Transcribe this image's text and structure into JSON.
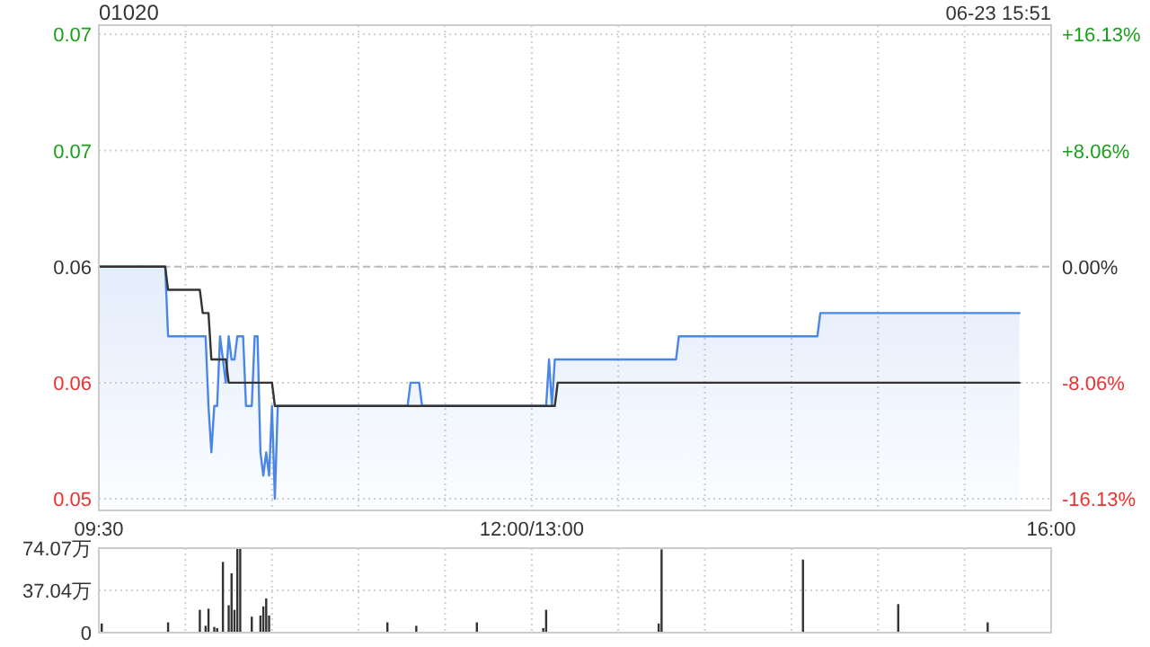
{
  "chart_data": [
    {
      "type": "line",
      "title": "01020",
      "annotations": [
        "06-23 15:51"
      ],
      "categories": [
        "09:30",
        null,
        null,
        null,
        null,
        null,
        null,
        null,
        null,
        null,
        null,
        null,
        null,
        null,
        null,
        null,
        null,
        null,
        null,
        null,
        null,
        null,
        null,
        null,
        null,
        null,
        null,
        null,
        null,
        null,
        null,
        null,
        null,
        null,
        null,
        null,
        null,
        null,
        null,
        null,
        null,
        null,
        null,
        null,
        null,
        null,
        null,
        null,
        null,
        null,
        null,
        null,
        null,
        null,
        null,
        null,
        null,
        null,
        null,
        null,
        null,
        null,
        null,
        null,
        null,
        null,
        null,
        null,
        null,
        null,
        null,
        null,
        null,
        null,
        null,
        null,
        null,
        null,
        null,
        null,
        null,
        null,
        null,
        null,
        null,
        null,
        null,
        null,
        null,
        null,
        null,
        null,
        null,
        null,
        null,
        null,
        null,
        null,
        null,
        null,
        null,
        null,
        null,
        null,
        null,
        null,
        null,
        null,
        null,
        null,
        null,
        null,
        null,
        null,
        null,
        null,
        null,
        null,
        null,
        null,
        null,
        null,
        null,
        null,
        null,
        null,
        null,
        null,
        null,
        null,
        null,
        null,
        null,
        null,
        null,
        null,
        null,
        null,
        null,
        null,
        null,
        null,
        null,
        null,
        null,
        null,
        null,
        null,
        null,
        null,
        "12:00/13:00",
        null,
        null,
        null,
        null,
        null,
        null,
        null,
        null,
        null,
        null,
        null,
        null,
        null,
        null,
        null,
        null,
        null,
        null,
        null,
        null,
        null,
        null,
        null,
        null,
        null,
        null,
        null,
        null,
        null,
        null,
        null,
        null,
        null,
        null,
        null,
        null,
        null,
        null,
        null,
        null,
        null,
        null,
        null,
        null,
        null,
        null,
        null,
        null,
        null,
        null,
        null,
        null,
        null,
        null,
        null,
        null,
        null,
        null,
        null,
        null,
        null,
        null,
        null,
        null,
        null,
        null,
        null,
        null,
        null,
        null,
        null,
        null,
        null,
        null,
        null,
        null,
        null,
        null,
        null,
        null,
        null,
        null,
        null,
        null,
        null,
        null,
        null,
        null,
        null,
        null,
        null,
        null,
        null,
        null,
        null,
        null,
        null,
        null,
        null,
        null,
        null,
        null,
        null,
        null,
        null,
        null,
        null,
        null,
        null,
        null,
        null,
        null,
        null,
        null,
        null,
        null,
        null,
        null,
        null,
        null,
        null,
        null,
        null,
        null,
        null,
        null,
        null,
        null,
        null,
        null,
        null,
        null,
        null,
        null,
        null,
        null,
        null,
        null,
        null,
        null,
        null,
        null,
        null,
        null,
        null,
        null,
        null,
        null,
        null,
        null,
        null,
        null,
        null,
        null,
        null,
        null,
        null,
        null,
        null,
        null,
        null,
        null,
        null,
        null,
        null,
        null,
        null,
        null,
        null,
        null,
        null,
        null,
        null,
        null,
        null,
        null,
        null,
        null,
        null,
        "16:00"
      ],
      "ylim": [
        0.0515,
        0.0724
      ],
      "yticks": [
        {
          "value": 0.052,
          "label": "0.05"
        },
        {
          "value": 0.057,
          "label": "0.06"
        },
        {
          "value": 0.062,
          "label": "0.06"
        },
        {
          "value": 0.067,
          "label": "0.07"
        },
        {
          "value": 0.072,
          "label": "0.07"
        }
      ],
      "y2lim": [
        -16.94,
        16.77
      ],
      "y2ticks": [
        {
          "value": -16.13,
          "label": "-16.13%"
        },
        {
          "value": -8.06,
          "label": "-8.06%"
        },
        {
          "value": 0,
          "label": "0.00%"
        },
        {
          "value": 8.06,
          "label": "+8.06%"
        },
        {
          "value": 16.13,
          "label": "+16.13%"
        }
      ],
      "grid": true,
      "ref_lines": [
        {
          "axis": "y2",
          "value": 0,
          "color": "#bbbbbb",
          "line_style": "dashed"
        }
      ],
      "series": [
        {
          "type": "area",
          "color": "#4a86e8",
          "values": [
            0.062,
            0.062,
            0.062,
            0.062,
            0.062,
            0.062,
            0.062,
            0.062,
            0.062,
            0.062,
            0.062,
            0.062,
            0.062,
            0.062,
            0.062,
            0.062,
            0.062,
            0.062,
            0.062,
            0.062,
            0.062,
            0.062,
            0.062,
            0.062,
            0.059,
            0.059,
            0.059,
            0.059,
            0.059,
            0.059,
            0.059,
            0.059,
            0.059,
            0.059,
            0.059,
            0.059,
            0.059,
            0.059,
            0.056,
            0.054,
            0.056,
            0.056,
            0.059,
            0.058,
            0.057,
            0.059,
            0.058,
            0.058,
            0.059,
            0.059,
            0.059,
            0.056,
            0.056,
            0.056,
            0.059,
            0.059,
            0.054,
            0.053,
            0.054,
            0.053,
            0.056,
            0.052,
            0.056,
            0.056,
            0.056,
            0.056,
            0.056,
            0.056,
            0.056,
            0.056,
            0.056,
            0.056,
            0.056,
            0.056,
            0.056,
            0.056,
            0.056,
            0.056,
            0.056,
            0.056,
            0.056,
            0.056,
            0.056,
            0.056,
            0.056,
            0.056,
            0.056,
            0.056,
            0.056,
            0.056,
            0.056,
            0.056,
            0.056,
            0.056,
            0.056,
            0.056,
            0.056,
            0.056,
            0.056,
            0.056,
            0.056,
            0.056,
            0.056,
            0.056,
            0.056,
            0.056,
            0.056,
            0.056,
            0.057,
            0.057,
            0.057,
            0.057,
            0.056,
            0.056,
            0.056,
            0.056,
            0.056,
            0.056,
            0.056,
            0.056,
            0.056,
            0.056,
            0.056,
            0.056,
            0.056,
            0.056,
            0.056,
            0.056,
            0.056,
            0.056,
            0.056,
            0.056,
            0.056,
            0.056,
            0.056,
            0.056,
            0.056,
            0.056,
            0.056,
            0.056,
            0.056,
            0.056,
            0.056,
            0.056,
            0.056,
            0.056,
            0.056,
            0.056,
            0.056,
            0.056,
            0.056,
            0.056,
            0.056,
            0.056,
            0.056,
            0.056,
            0.058,
            0.056,
            0.058,
            0.058,
            0.058,
            0.058,
            0.058,
            0.058,
            0.058,
            0.058,
            0.058,
            0.058,
            0.058,
            0.058,
            0.058,
            0.058,
            0.058,
            0.058,
            0.058,
            0.058,
            0.058,
            0.058,
            0.058,
            0.058,
            0.058,
            0.058,
            0.058,
            0.058,
            0.058,
            0.058,
            0.058,
            0.058,
            0.058,
            0.058,
            0.058,
            0.058,
            0.058,
            0.058,
            0.058,
            0.058,
            0.058,
            0.058,
            0.058,
            0.058,
            0.058,
            0.059,
            0.059,
            0.059,
            0.059,
            0.059,
            0.059,
            0.059,
            0.059,
            0.059,
            0.059,
            0.059,
            0.059,
            0.059,
            0.059,
            0.059,
            0.059,
            0.059,
            0.059,
            0.059,
            0.059,
            0.059,
            0.059,
            0.059,
            0.059,
            0.059,
            0.059,
            0.059,
            0.059,
            0.059,
            0.059,
            0.059,
            0.059,
            0.059,
            0.059,
            0.059,
            0.059,
            0.059,
            0.059,
            0.059,
            0.059,
            0.059,
            0.059,
            0.059,
            0.059,
            0.059,
            0.059,
            0.059,
            0.059,
            0.059,
            0.06,
            0.06,
            0.06,
            0.06,
            0.06,
            0.06,
            0.06,
            0.06,
            0.06,
            0.06,
            0.06,
            0.06,
            0.06,
            0.06,
            0.06,
            0.06,
            0.06,
            0.06,
            0.06,
            0.06,
            0.06,
            0.06,
            0.06,
            0.06,
            0.06,
            0.06,
            0.06,
            0.06,
            0.06,
            0.06,
            0.06,
            0.06,
            0.06,
            0.06,
            0.06,
            0.06,
            0.06,
            0.06,
            0.06,
            0.06,
            0.06,
            0.06,
            0.06,
            0.06,
            0.06,
            0.06,
            0.06,
            0.06,
            0.06,
            0.06,
            0.06,
            0.06,
            0.06,
            0.06,
            0.06,
            0.06,
            0.06,
            0.06,
            0.06,
            0.06,
            0.06,
            0.06,
            0.06,
            0.06,
            0.06,
            0.06,
            0.06,
            0.06,
            0.06,
            0.06,
            null,
            null,
            null,
            null,
            null,
            null,
            null,
            null,
            null,
            null,
            null
          ]
        },
        {
          "color": "#333333",
          "values": [
            0.062,
            0.062,
            0.062,
            0.062,
            0.062,
            0.062,
            0.062,
            0.062,
            0.062,
            0.062,
            0.062,
            0.062,
            0.062,
            0.062,
            0.062,
            0.062,
            0.062,
            0.062,
            0.062,
            0.062,
            0.062,
            0.062,
            0.062,
            0.062,
            0.061,
            0.061,
            0.061,
            0.061,
            0.061,
            0.061,
            0.061,
            0.061,
            0.061,
            0.061,
            0.061,
            0.061,
            0.06,
            0.06,
            0.06,
            0.058,
            0.058,
            0.058,
            0.058,
            0.058,
            0.058,
            0.057,
            0.057,
            0.057,
            0.057,
            0.057,
            0.057,
            0.057,
            0.057,
            0.057,
            0.057,
            0.057,
            0.057,
            0.057,
            0.057,
            0.057,
            0.057,
            0.056,
            0.056,
            0.056,
            0.056,
            0.056,
            0.056,
            0.056,
            0.056,
            0.056,
            0.056,
            0.056,
            0.056,
            0.056,
            0.056,
            0.056,
            0.056,
            0.056,
            0.056,
            0.056,
            0.056,
            0.056,
            0.056,
            0.056,
            0.056,
            0.056,
            0.056,
            0.056,
            0.056,
            0.056,
            0.056,
            0.056,
            0.056,
            0.056,
            0.056,
            0.056,
            0.056,
            0.056,
            0.056,
            0.056,
            0.056,
            0.056,
            0.056,
            0.056,
            0.056,
            0.056,
            0.056,
            0.056,
            0.056,
            0.056,
            0.056,
            0.056,
            0.056,
            0.056,
            0.056,
            0.056,
            0.056,
            0.056,
            0.056,
            0.056,
            0.056,
            0.056,
            0.056,
            0.056,
            0.056,
            0.056,
            0.056,
            0.056,
            0.056,
            0.056,
            0.056,
            0.056,
            0.056,
            0.056,
            0.056,
            0.056,
            0.056,
            0.056,
            0.056,
            0.056,
            0.056,
            0.056,
            0.056,
            0.056,
            0.056,
            0.056,
            0.056,
            0.056,
            0.056,
            0.056,
            0.056,
            0.056,
            0.056,
            0.056,
            0.056,
            0.056,
            0.056,
            0.056,
            0.056,
            0.057,
            0.057,
            0.057,
            0.057,
            0.057,
            0.057,
            0.057,
            0.057,
            0.057,
            0.057,
            0.057,
            0.057,
            0.057,
            0.057,
            0.057,
            0.057,
            0.057,
            0.057,
            0.057,
            0.057,
            0.057,
            0.057,
            0.057,
            0.057,
            0.057,
            0.057,
            0.057,
            0.057,
            0.057,
            0.057,
            0.057,
            0.057,
            0.057,
            0.057,
            0.057,
            0.057,
            0.057,
            0.057,
            0.057,
            0.057,
            0.057,
            0.057,
            0.057,
            0.057,
            0.057,
            0.057,
            0.057,
            0.057,
            0.057,
            0.057,
            0.057,
            0.057,
            0.057,
            0.057,
            0.057,
            0.057,
            0.057,
            0.057,
            0.057,
            0.057,
            0.057,
            0.057,
            0.057,
            0.057,
            0.057,
            0.057,
            0.057,
            0.057,
            0.057,
            0.057,
            0.057,
            0.057,
            0.057,
            0.057,
            0.057,
            0.057,
            0.057,
            0.057,
            0.057,
            0.057,
            0.057,
            0.057,
            0.057,
            0.057,
            0.057,
            0.057,
            0.057,
            0.057,
            0.057,
            0.057,
            0.057,
            0.057,
            0.057,
            0.057,
            0.057,
            0.057,
            0.057,
            0.057,
            0.057,
            0.057,
            0.057,
            0.057,
            0.057,
            0.057,
            0.057,
            0.057,
            0.057,
            0.057,
            0.057,
            0.057,
            0.057,
            0.057,
            0.057,
            0.057,
            0.057,
            0.057,
            0.057,
            0.057,
            0.057,
            0.057,
            0.057,
            0.057,
            0.057,
            0.057,
            0.057,
            0.057,
            0.057,
            0.057,
            0.057,
            0.057,
            0.057,
            0.057,
            0.057,
            0.057,
            0.057,
            0.057,
            0.057,
            0.057,
            0.057,
            0.057,
            0.057,
            0.057,
            0.057,
            0.057,
            0.057,
            0.057,
            0.057,
            0.057,
            0.057,
            0.057,
            0.057,
            0.057,
            0.057,
            0.057,
            0.057,
            0.057,
            0.057,
            0.057,
            0.057,
            0.057,
            0.057,
            null,
            null,
            null,
            null,
            null,
            null,
            null,
            null,
            null,
            null,
            null
          ]
        }
      ]
    },
    {
      "type": "bar",
      "tick_labels": "y",
      "categories": [
        null,
        null,
        null,
        null,
        null,
        null,
        null,
        null,
        null,
        null,
        null,
        null,
        null,
        null,
        null,
        null,
        null,
        null,
        null,
        null,
        null,
        null,
        null,
        null,
        null,
        null,
        null,
        null,
        null,
        null,
        null,
        null,
        null,
        null,
        null,
        null,
        null,
        null,
        null,
        null,
        null,
        null,
        null,
        null,
        null,
        null,
        null,
        null,
        null,
        null,
        null,
        null,
        null,
        null,
        null,
        null,
        null,
        null,
        null,
        null,
        null,
        null,
        null,
        null,
        null,
        null,
        null,
        null,
        null,
        null,
        null,
        null,
        null,
        null,
        null,
        null,
        null,
        null,
        null,
        null,
        null,
        null,
        null,
        null,
        null,
        null,
        null,
        null,
        null,
        null,
        null,
        null,
        null,
        null,
        null,
        null,
        null,
        null,
        null,
        null,
        null,
        null,
        null,
        null,
        null,
        null,
        null,
        null,
        null,
        null,
        null,
        null,
        null,
        null,
        null,
        null,
        null,
        null,
        null,
        null,
        null,
        null,
        null,
        null,
        null,
        null,
        null,
        null,
        null,
        null,
        null,
        null,
        null,
        null,
        null,
        null,
        null,
        null,
        null,
        null,
        null,
        null,
        null,
        null,
        null,
        null,
        null,
        null,
        null,
        null,
        null,
        null,
        null,
        null,
        null,
        null,
        null,
        null,
        null,
        null,
        null,
        null,
        null,
        null,
        null,
        null,
        null,
        null,
        null,
        null,
        null,
        null,
        null,
        null,
        null,
        null,
        null,
        null,
        null,
        null,
        null,
        null,
        null,
        null,
        null,
        null,
        null,
        null,
        null,
        null,
        null,
        null,
        null,
        null,
        null,
        null,
        null,
        null,
        null,
        null,
        null,
        null,
        null,
        null,
        null,
        null,
        null,
        null,
        null,
        null,
        null,
        null,
        null,
        null,
        null,
        null,
        null,
        null,
        null,
        null,
        null,
        null,
        null,
        null,
        null,
        null,
        null,
        null,
        null,
        null,
        null,
        null,
        null,
        null,
        null,
        null,
        null,
        null,
        null,
        null,
        null,
        null,
        null,
        null,
        null,
        null,
        null,
        null,
        null,
        null,
        null,
        null,
        null,
        null,
        null,
        null,
        null,
        null,
        null,
        null,
        null,
        null,
        null,
        null,
        null,
        null,
        null,
        null,
        null,
        null,
        null,
        null,
        null,
        null,
        null,
        null,
        null,
        null,
        null,
        null,
        null,
        null,
        null,
        null,
        null,
        null,
        null,
        null,
        null,
        null,
        null,
        null,
        null,
        null,
        null,
        null,
        null,
        null,
        null,
        null,
        null,
        null,
        null,
        null,
        null,
        null,
        null,
        null,
        null,
        null,
        null,
        null,
        null,
        null,
        null,
        null,
        null,
        null,
        null,
        null,
        null,
        null,
        null,
        null,
        null,
        null,
        null,
        null,
        null,
        null,
        null
      ],
      "ylim": [
        0,
        74.07
      ],
      "yticks": [
        0,
        {
          "value": 37.04,
          "label": "37.04万"
        },
        {
          "value": 74.07,
          "label": "74.07万"
        }
      ],
      "grid": true,
      "series": [
        {
          "color": "#333333",
          "values": [
            null,
            8,
            null,
            null,
            null,
            null,
            null,
            null,
            null,
            null,
            null,
            null,
            null,
            null,
            null,
            null,
            null,
            null,
            null,
            null,
            null,
            null,
            null,
            null,
            9,
            null,
            null,
            null,
            null,
            null,
            null,
            null,
            null,
            null,
            null,
            20,
            null,
            6,
            21,
            null,
            5,
            4,
            null,
            62,
            null,
            24,
            52,
            20,
            74,
            74,
            null,
            null,
            null,
            14,
            null,
            null,
            15,
            23,
            30,
            15,
            null,
            null,
            null,
            null,
            null,
            null,
            null,
            null,
            null,
            null,
            null,
            null,
            null,
            null,
            null,
            null,
            null,
            null,
            null,
            null,
            null,
            null,
            null,
            null,
            null,
            null,
            null,
            null,
            null,
            null,
            null,
            null,
            null,
            null,
            null,
            null,
            null,
            null,
            null,
            null,
            9,
            null,
            null,
            null,
            null,
            null,
            null,
            null,
            null,
            null,
            6,
            null,
            null,
            null,
            null,
            null,
            null,
            null,
            null,
            null,
            null,
            null,
            null,
            null,
            null,
            null,
            null,
            null,
            null,
            null,
            null,
            9,
            null,
            null,
            null,
            null,
            null,
            null,
            null,
            null,
            null,
            null,
            null,
            null,
            null,
            null,
            null,
            null,
            null,
            null,
            null,
            null,
            null,
            null,
            4,
            20,
            null,
            null,
            null,
            null,
            null,
            null,
            null,
            null,
            null,
            null,
            null,
            null,
            null,
            null,
            null,
            null,
            null,
            null,
            null,
            null,
            null,
            null,
            null,
            null,
            null,
            null,
            null,
            null,
            null,
            null,
            null,
            null,
            null,
            null,
            null,
            null,
            null,
            null,
            8,
            73,
            null,
            null,
            null,
            null,
            null,
            null,
            null,
            null,
            null,
            null,
            null,
            null,
            null,
            null,
            null,
            null,
            null,
            null,
            null,
            null,
            null,
            null,
            null,
            null,
            null,
            null,
            null,
            null,
            null,
            null,
            null,
            null,
            null,
            null,
            null,
            null,
            null,
            null,
            null,
            null,
            null,
            null,
            null,
            null,
            null,
            null,
            null,
            null,
            64,
            null,
            null,
            null,
            null,
            null,
            null,
            null,
            null,
            null,
            null,
            null,
            null,
            null,
            null,
            null,
            null,
            null,
            null,
            null,
            null,
            null,
            null,
            null,
            null,
            null,
            null,
            null,
            null,
            null,
            null,
            null,
            null,
            25,
            null,
            null,
            null,
            null,
            null,
            null,
            null,
            null,
            null,
            null,
            null,
            null,
            null,
            null,
            null,
            null,
            null,
            null,
            null,
            null,
            null,
            null,
            null,
            null,
            null,
            null,
            null,
            null,
            null,
            null,
            9,
            null,
            null,
            null,
            null,
            null,
            null,
            null,
            null,
            null,
            null,
            null,
            null,
            null,
            null,
            null,
            null,
            null,
            null,
            null,
            null,
            null,
            null
          ]
        }
      ]
    }
  ]
}
